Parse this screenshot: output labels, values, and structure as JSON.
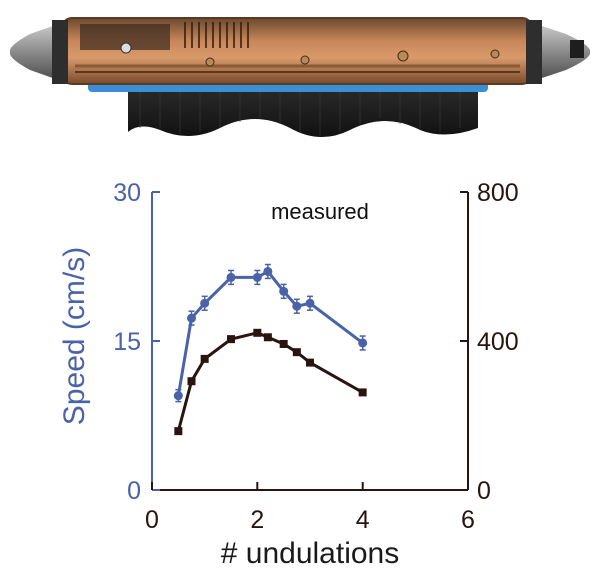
{
  "colors": {
    "speed_series": "#4a63a8",
    "second_series": "#2a1410",
    "left_axis": "#4a63a8",
    "right_axis": "#2a1410",
    "background": "#ffffff"
  },
  "chart_data": {
    "type": "line",
    "title": "",
    "annotation": "measured",
    "xlabel": "# undulations",
    "ylabel_left": "Speed (cm/s)",
    "ylabel_right": "",
    "xlim": [
      0,
      6
    ],
    "ylim_left": [
      0,
      30
    ],
    "ylim_right": [
      0,
      800
    ],
    "x_ticks": [
      "0",
      "2",
      "4",
      "6"
    ],
    "y_left_ticks": [
      "0",
      "15",
      "30"
    ],
    "y_right_ticks": [
      "0",
      "400",
      "800"
    ],
    "grid": false,
    "legend": "none",
    "series": [
      {
        "axis": "left",
        "marker": "circle",
        "error_bars": true,
        "x": [
          0.5,
          0.75,
          1.0,
          1.5,
          2.0,
          2.2,
          2.5,
          2.75,
          3.0,
          4.0
        ],
        "y": [
          9.5,
          17.3,
          18.8,
          21.4,
          21.4,
          22.0,
          20.0,
          18.5,
          18.8,
          14.8
        ],
        "err": [
          0.6,
          0.7,
          0.7,
          0.7,
          0.7,
          0.7,
          0.7,
          0.7,
          0.7,
          0.7
        ]
      },
      {
        "axis": "right",
        "marker": "square",
        "error_bars": false,
        "x": [
          0.5,
          0.75,
          1.0,
          1.5,
          2.0,
          2.2,
          2.5,
          2.75,
          3.0,
          4.0
        ],
        "y": [
          158,
          292,
          352,
          405,
          422,
          410,
          392,
          370,
          342,
          262
        ]
      }
    ]
  }
}
